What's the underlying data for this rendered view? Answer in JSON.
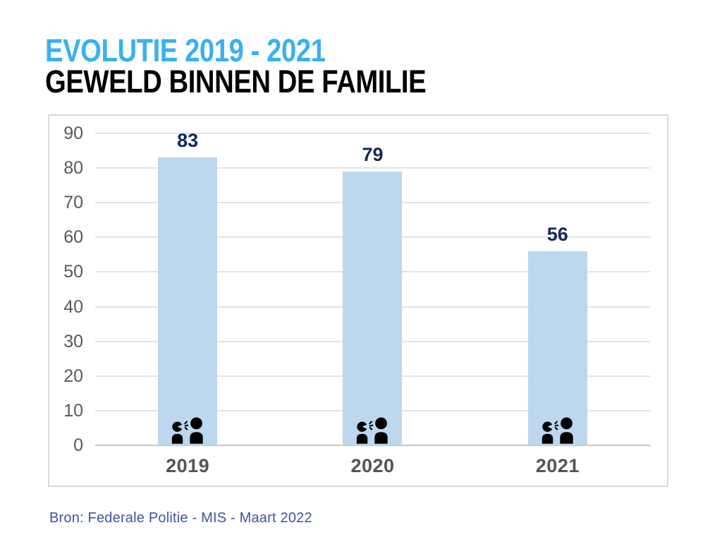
{
  "header": {
    "title_line1": "EVOLUTIE 2019 - 2021",
    "title_line2": "GEWELD BINNEN DE FAMILIE"
  },
  "footer": {
    "source": "Bron: Federale Politie - MIS - Maart 2022"
  },
  "chart_data": {
    "type": "bar",
    "title": "EVOLUTIE 2019 - 2021 GEWELD BINNEN DE FAMILIE",
    "categories": [
      "2019",
      "2020",
      "2021"
    ],
    "values": [
      83,
      79,
      56
    ],
    "xlabel": "",
    "ylabel": "",
    "ylim": [
      0,
      90
    ],
    "yticks": [
      0,
      10,
      20,
      30,
      40,
      50,
      60,
      70,
      80,
      90
    ],
    "grid": true,
    "legend": false,
    "bar_icon": "arguing-people-icon"
  },
  "colors": {
    "title_accent": "#3AB0F2",
    "title_black": "#000000",
    "panel_border": "#D9D9D9",
    "gridline": "#E3E3E3",
    "axis_line": "#C4C4C4",
    "bar_fill": "#BDD7EE",
    "value_label": "#12295B",
    "tick_label": "#595959",
    "category_label": "#545454",
    "source_text": "#4053A3",
    "icon": "#000000"
  }
}
